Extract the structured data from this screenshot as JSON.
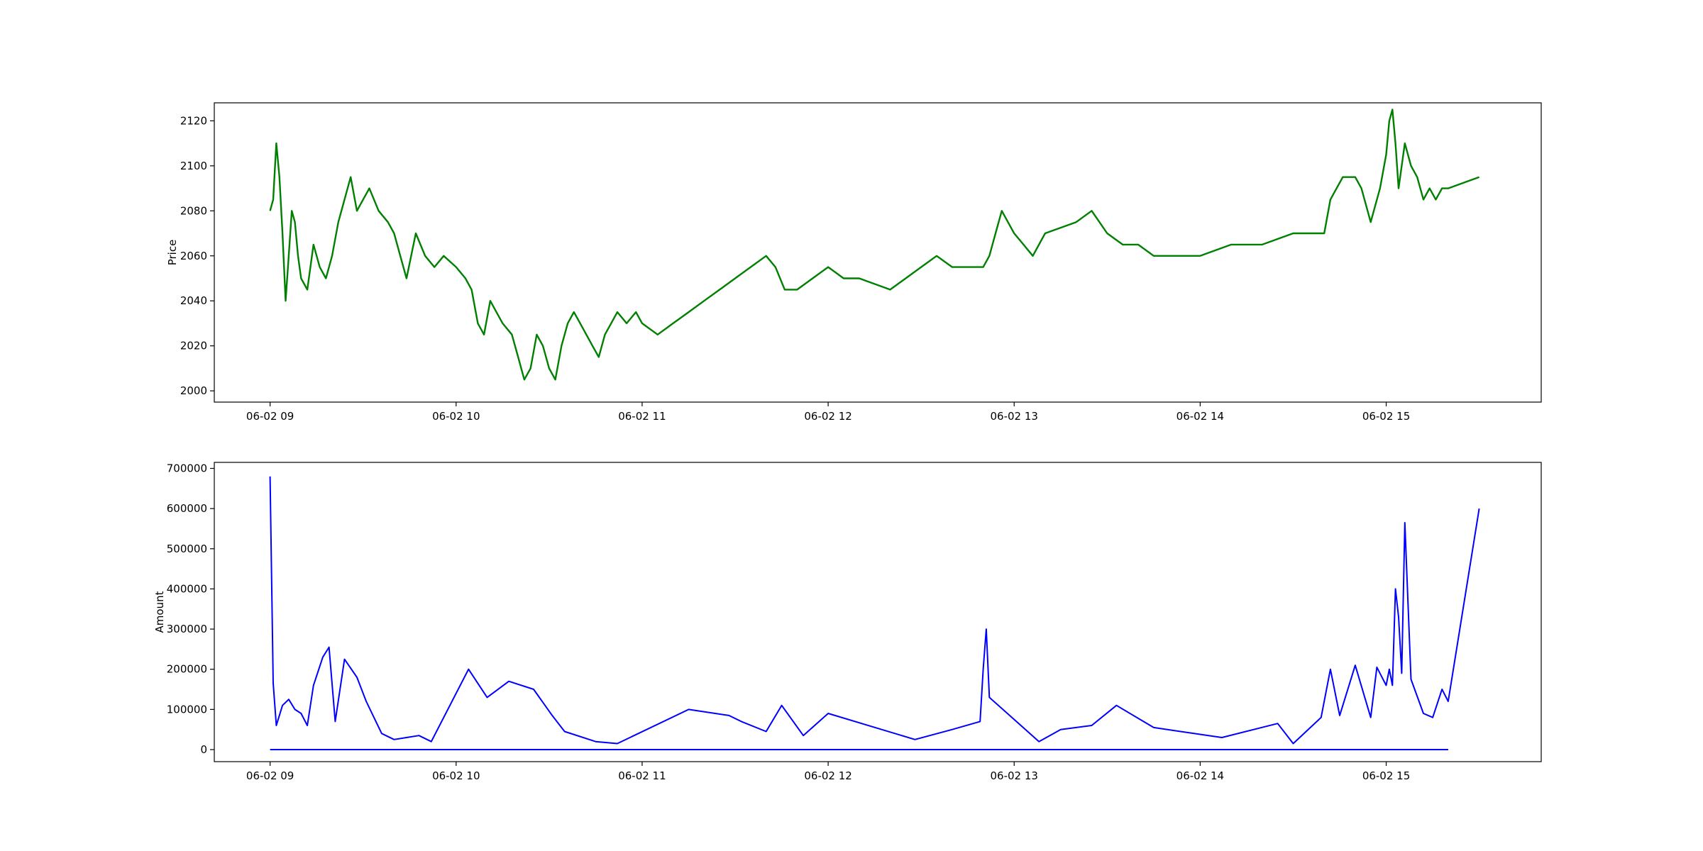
{
  "chart_data": [
    {
      "type": "line",
      "title": "",
      "xlabel": "",
      "ylabel": "Price",
      "ylim": [
        1995,
        2128
      ],
      "xlim": [
        "2020-06-02 08:42",
        "2020-06-02 15:50"
      ],
      "grid": false,
      "color": "#008000",
      "x_ticks": [
        "06-02 09",
        "06-02 10",
        "06-02 11",
        "06-02 12",
        "06-02 13",
        "06-02 14",
        "06-02 15"
      ],
      "y_ticks": [
        2000,
        2020,
        2040,
        2060,
        2080,
        2100,
        2120
      ],
      "series": [
        {
          "x": [
            "09:00",
            "09:01",
            "09:02",
            "09:03",
            "09:04",
            "09:05",
            "09:06",
            "09:07",
            "09:08",
            "09:09",
            "09:10",
            "09:12",
            "09:14",
            "09:16",
            "09:18",
            "09:20",
            "09:22",
            "09:24",
            "09:26",
            "09:28",
            "09:30",
            "09:32",
            "09:35",
            "09:38",
            "09:40",
            "09:42",
            "09:44",
            "09:47",
            "09:50",
            "09:53",
            "09:56",
            "10:00",
            "10:03",
            "10:05",
            "10:07",
            "10:09",
            "10:11",
            "10:13",
            "10:15",
            "10:18",
            "10:20",
            "10:22",
            "10:24",
            "10:26",
            "10:28",
            "10:30",
            "10:32",
            "10:34",
            "10:36",
            "10:38",
            "10:40",
            "10:42",
            "10:44",
            "10:46",
            "10:48",
            "10:50",
            "10:52",
            "10:55",
            "10:58",
            "11:00",
            "11:05",
            "11:10",
            "11:15",
            "11:20",
            "11:25",
            "11:30",
            "11:35",
            "11:40",
            "11:43",
            "11:46",
            "11:50",
            "11:55",
            "12:00",
            "12:05",
            "12:10",
            "12:20",
            "12:30",
            "12:35",
            "12:40",
            "12:50",
            "12:52",
            "12:54",
            "12:56",
            "12:58",
            "13:00",
            "13:03",
            "13:06",
            "13:10",
            "13:20",
            "13:25",
            "13:30",
            "13:35",
            "13:40",
            "13:45",
            "13:50",
            "14:00",
            "14:10",
            "14:20",
            "14:30",
            "14:40",
            "14:42",
            "14:44",
            "14:46",
            "14:50",
            "14:52",
            "14:55",
            "14:58",
            "15:00",
            "15:01",
            "15:02",
            "15:03",
            "15:04",
            "15:05",
            "15:06",
            "15:08",
            "15:10",
            "15:12",
            "15:14",
            "15:16",
            "15:18",
            "15:20",
            "15:30"
          ],
          "values": [
            2080,
            2085,
            2110,
            2095,
            2070,
            2040,
            2060,
            2080,
            2075,
            2060,
            2050,
            2045,
            2065,
            2055,
            2050,
            2060,
            2075,
            2085,
            2095,
            2080,
            2085,
            2090,
            2080,
            2075,
            2070,
            2060,
            2050,
            2070,
            2060,
            2055,
            2060,
            2055,
            2050,
            2045,
            2030,
            2025,
            2040,
            2035,
            2030,
            2025,
            2015,
            2005,
            2010,
            2025,
            2020,
            2010,
            2005,
            2020,
            2030,
            2035,
            2030,
            2025,
            2020,
            2015,
            2025,
            2030,
            2035,
            2030,
            2035,
            2030,
            2025,
            2030,
            2035,
            2040,
            2045,
            2050,
            2055,
            2060,
            2055,
            2045,
            2045,
            2050,
            2055,
            2050,
            2050,
            2045,
            2055,
            2060,
            2055,
            2055,
            2060,
            2070,
            2080,
            2075,
            2070,
            2065,
            2060,
            2070,
            2075,
            2080,
            2070,
            2065,
            2065,
            2060,
            2060,
            2060,
            2065,
            2065,
            2070,
            2070,
            2085,
            2090,
            2095,
            2095,
            2090,
            2075,
            2090,
            2105,
            2120,
            2125,
            2110,
            2090,
            2100,
            2110,
            2100,
            2095,
            2085,
            2090,
            2085,
            2090,
            2090,
            2095
          ]
        }
      ]
    },
    {
      "type": "line",
      "title": "",
      "xlabel": "",
      "ylabel": "Amount",
      "ylim": [
        -30000,
        715000
      ],
      "xlim": [
        "2020-06-02 08:42",
        "2020-06-02 15:50"
      ],
      "grid": false,
      "color": "#0000ff",
      "x_ticks": [
        "06-02 09",
        "06-02 10",
        "06-02 11",
        "06-02 12",
        "06-02 13",
        "06-02 14",
        "06-02 15"
      ],
      "y_ticks": [
        0,
        100000,
        200000,
        300000,
        400000,
        500000,
        600000,
        700000
      ],
      "series": [
        {
          "x": [
            "09:00",
            "09:01",
            "09:02",
            "09:04",
            "09:06",
            "09:08",
            "09:10",
            "09:12",
            "09:14",
            "09:17",
            "09:19",
            "09:21",
            "09:24",
            "09:28",
            "09:31",
            "09:36",
            "09:40",
            "09:44",
            "09:48",
            "09:52",
            "10:04",
            "10:10",
            "10:17",
            "10:25",
            "10:31",
            "10:35",
            "10:45",
            "10:52",
            "11:15",
            "11:28",
            "11:32",
            "11:40",
            "11:45",
            "11:52",
            "12:00",
            "12:28",
            "12:40",
            "12:49",
            "12:50",
            "12:51",
            "12:52",
            "13:08",
            "13:15",
            "13:25",
            "13:33",
            "13:45",
            "14:07",
            "14:25",
            "14:30",
            "14:39",
            "14:42",
            "14:45",
            "14:50",
            "14:55",
            "14:57",
            "15:00",
            "15:01",
            "15:02",
            "15:03",
            "15:04",
            "15:05",
            "15:06",
            "15:08",
            "15:12",
            "15:15",
            "15:18",
            "15:20",
            "15:30"
          ],
          "values": [
            680000,
            165000,
            60000,
            110000,
            125000,
            100000,
            90000,
            60000,
            160000,
            230000,
            255000,
            70000,
            225000,
            180000,
            120000,
            40000,
            25000,
            30000,
            35000,
            20000,
            200000,
            130000,
            170000,
            150000,
            85000,
            45000,
            20000,
            15000,
            100000,
            85000,
            70000,
            45000,
            110000,
            35000,
            90000,
            25000,
            50000,
            70000,
            200000,
            300000,
            130000,
            20000,
            50000,
            60000,
            110000,
            55000,
            30000,
            65000,
            15000,
            80000,
            200000,
            85000,
            210000,
            80000,
            205000,
            160000,
            200000,
            160000,
            400000,
            330000,
            190000,
            565000,
            175000,
            90000,
            80000,
            150000,
            120000,
            600000
          ]
        }
      ]
    }
  ]
}
